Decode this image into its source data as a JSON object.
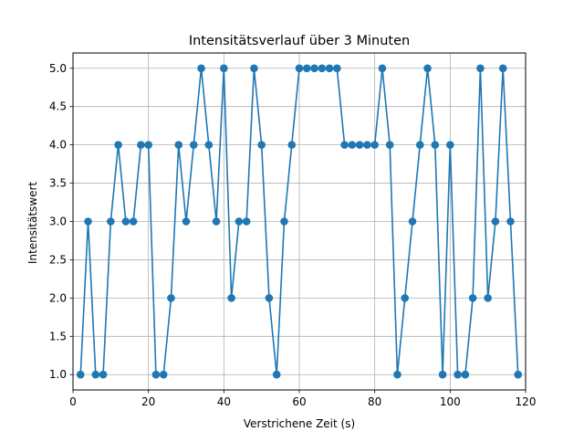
{
  "chart_data": {
    "type": "line",
    "title": "Intensitätsverlauf über 3 Minuten",
    "xlabel": "Verstrichene Zeit (s)",
    "ylabel": "Intensitätswert",
    "xlim": [
      0,
      120
    ],
    "ylim": [
      0.8,
      5.2
    ],
    "xticks": [
      0,
      20,
      40,
      60,
      80,
      100,
      120
    ],
    "yticks": [
      1.0,
      1.5,
      2.0,
      2.5,
      3.0,
      3.5,
      4.0,
      4.5,
      5.0
    ],
    "xtick_labels": [
      "0",
      "20",
      "40",
      "60",
      "80",
      "100",
      "120"
    ],
    "ytick_labels": [
      "1.0",
      "1.5",
      "2.0",
      "2.5",
      "3.0",
      "3.5",
      "4.0",
      "4.5",
      "5.0"
    ],
    "grid": true,
    "series": [
      {
        "name": "Intensitätswert",
        "color": "#1f77b4",
        "x": [
          2,
          4,
          6,
          8,
          10,
          12,
          14,
          16,
          18,
          20,
          22,
          24,
          26,
          28,
          30,
          32,
          34,
          36,
          38,
          40,
          42,
          44,
          46,
          48,
          50,
          52,
          54,
          56,
          58,
          60,
          62,
          64,
          66,
          68,
          70,
          72,
          74,
          76,
          78,
          80,
          82,
          84,
          86,
          88,
          90,
          92,
          94,
          96,
          98,
          100,
          102,
          104,
          106,
          108,
          110,
          112,
          114,
          116,
          118
        ],
        "y": [
          1,
          3,
          1,
          1,
          3,
          4,
          3,
          3,
          4,
          4,
          1,
          1,
          2,
          4,
          3,
          4,
          5,
          4,
          3,
          5,
          2,
          3,
          3,
          5,
          4,
          2,
          1,
          3,
          4,
          5,
          5,
          5,
          5,
          5,
          5,
          4,
          4,
          4,
          4,
          4,
          5,
          4,
          1,
          2,
          3,
          4,
          5,
          4,
          1,
          4,
          1,
          1,
          2,
          5,
          2,
          3,
          5,
          3,
          1
        ]
      }
    ]
  }
}
